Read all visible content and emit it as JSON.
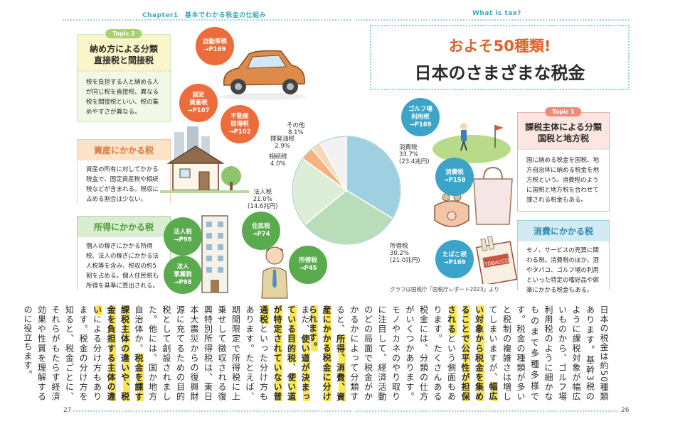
{
  "header": {
    "chapter": "Chapter1　基本でわかる税金の仕組み",
    "section": "What is tax?"
  },
  "pages": {
    "left": "27",
    "right": "26"
  },
  "title": {
    "line1": "およそ50種類!",
    "line2": "日本のさまざまな税金"
  },
  "topic2": {
    "tag": "Topic 2",
    "heading": "納め方による分類\n直接税と間接税",
    "body": "税を負担する人と納める人が同じ税を直接税、異なる税を間接税といい、税の集めやすさが異なる。"
  },
  "topic1": {
    "tag": "Topic 1",
    "heading": "課税主体による分類\n国税と地方税",
    "body": "国に納める税金を国税、地方自治体に納める税金を地方税という。消費税のように国税と地方税を合わせて課される税金もある。"
  },
  "categories": {
    "asset": {
      "title": "資産にかかる税",
      "body": "資産の所有に対してかかる税金で、固定資産税や相続税などが含まれる。税収に占める割合は少ない。"
    },
    "income": {
      "title": "所得にかかる税",
      "body": "個人の稼ぎにかかる所得税、法人の稼ぎにかかる法人税等を含み、税収の約5割を占める。個人住民税も所得を基準に算出される。"
    },
    "consumption": {
      "title": "消費にかかる税",
      "body": "モノ、サービスの売買に関わる税。消費税のほか、酒やタバコ、ゴルフ場の利用といった特定の嗜好品や娯楽にかかる税金もある。"
    }
  },
  "badges": {
    "car": {
      "name": "自動車税",
      "ref": "→P169"
    },
    "fixed": {
      "name": "固定\n資産税",
      "ref": "→P107"
    },
    "realestate": {
      "name": "不動産\n取得税",
      "ref": "→P102"
    },
    "corp": {
      "name": "法人税",
      "ref": "→P98"
    },
    "resident": {
      "name": "住民税",
      "ref": "→P74"
    },
    "corpbiz": {
      "name": "法人\n事業税",
      "ref": "→P98"
    },
    "income": {
      "name": "所得税",
      "ref": "→P45"
    },
    "golf": {
      "name": "ゴルフ場\n利用税",
      "ref": "→P169"
    },
    "consumption": {
      "name": "消費税",
      "ref": "→P158"
    },
    "tobacco": {
      "name": "たばこ税",
      "ref": "→P169"
    }
  },
  "chart_data": {
    "type": "pie",
    "unit": "%",
    "slices": [
      {
        "name": "消費税",
        "value": 33.7,
        "amount": "(23.4兆円)",
        "color": "#9fd0e2"
      },
      {
        "name": "所得税",
        "value": 30.2,
        "amount": "(21.0兆円)",
        "color": "#b9ddb8"
      },
      {
        "name": "法人税",
        "value": 21.0,
        "amount": "(14.6兆円)",
        "color": "#dcefd6"
      },
      {
        "name": "相続税",
        "value": 4.0,
        "amount": "",
        "color": "#f6b27f"
      },
      {
        "name": "揮発油税",
        "value": 2.9,
        "amount": "",
        "color": "#f7d9b9"
      },
      {
        "name": "その他",
        "value": 8.1,
        "amount": "",
        "color": "#f1f1f1"
      }
    ],
    "source": "グラフは国税庁「国税庁レポート2023」より"
  },
  "body_text": {
    "right": [
      "日本の税金は約50種類あります。",
      "基幹3税のように課税対象が幅広いものから、ゴルフ場利用税のように細かなものまで多種多様です。",
      "税金の種類が多いと税制の複雑さは増してしまいますが、",
      "幅広い対象から税金を集めることで公平性が担保される",
      "という側面もあります。",
      "たくさんある税金には、分類の仕方がいくつかあります。",
      "モノやカネのやり取りに注目して、経済活動のどの局面で税金がかかるかによって分類すると、",
      "所得、消費、資産に",
      "かかる税金に分けられます。"
    ],
    "left": [
      "また、",
      "使い道が決まっている目的税",
      "、",
      "使い道が特定されていない普通税",
      "といった分け方もあります。たとえば、期間限定で所得税に上乗せして徴収される復興特別所得税は、東日本大震災からの復興財源に充てるための目的税として創設されました。",
      "他には、国か地方自治体か、",
      "税金を課す課税主体の違いや、税金を負担する主体の違い",
      "による分け方もあります。税金の分け方を知ると、税金ごとに、それらがもたらす経済効果や性質を理解するのに役立ちます。"
    ]
  }
}
